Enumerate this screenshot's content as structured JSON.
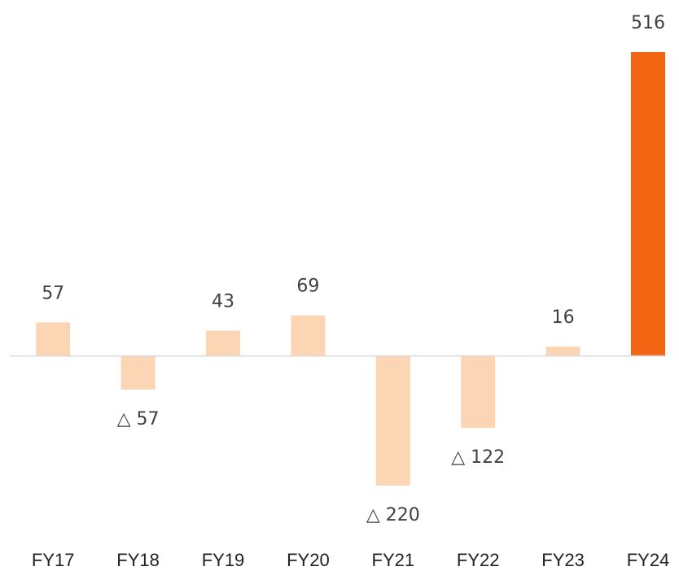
{
  "chart_data": {
    "type": "bar",
    "categories": [
      "FY17",
      "FY18",
      "FY19",
      "FY20",
      "FY21",
      "FY22",
      "FY23",
      "FY24"
    ],
    "values": [
      57,
      -57,
      43,
      69,
      -220,
      -122,
      16,
      516
    ],
    "value_labels": [
      "57",
      "△ 57",
      "43",
      "69",
      "△ 220",
      "△ 122",
      "16",
      "516"
    ],
    "colors": [
      "#fcd5b5",
      "#fcd5b5",
      "#fcd5b5",
      "#fcd5b5",
      "#fcd5b5",
      "#fcd5b5",
      "#fcd5b5",
      "#f26513"
    ]
  }
}
